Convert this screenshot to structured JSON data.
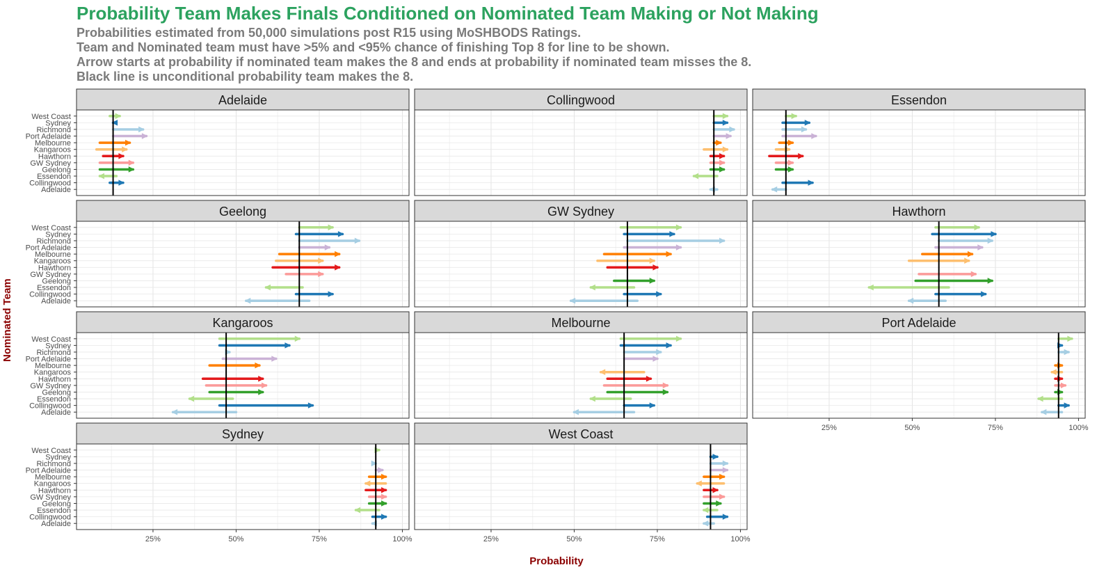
{
  "title": "Probability Team Makes Finals Conditioned on Nominated Team Making or Not Making",
  "subtitle_lines": [
    "Probabilities estimated from 50,000 simulations post R15 using MoSHBODS Ratings.",
    "Team and Nominated team must have >5% and <95% chance of finishing Top 8 for line to be shown.",
    "Arrow starts at probability if nominated team makes the 8 and ends at probability if nominated team misses the 8.",
    "Black line is unconditional probability team makes the 8."
  ],
  "chart_data": {
    "type": "arrow-dumbbell",
    "xlabel": "Probability",
    "ylabel": "Nominated Team",
    "xlim": [
      0.02,
      1.02
    ],
    "x_ticks": [
      0.25,
      0.5,
      0.75,
      1.0
    ],
    "x_tick_labels": [
      "25%",
      "50%",
      "75%",
      "100%"
    ],
    "y_categories": [
      "West Coast",
      "Sydney",
      "Richmond",
      "Port Adelaide",
      "Melbourne",
      "Kangaroos",
      "Hawthorn",
      "GW Sydney",
      "Geelong",
      "Essendon",
      "Collingwood",
      "Adelaide"
    ],
    "colors": {
      "West Coast": "#B2DF8A",
      "Sydney": "#1F78B4",
      "Richmond": "#A6CEE3",
      "Port Adelaide": "#CAB2D6",
      "Melbourne": "#FF7F00",
      "Kangaroos": "#FDBF6F",
      "Hawthorn": "#E31A1C",
      "GW Sydney": "#FB9A99",
      "Geelong": "#33A02C",
      "Essendon": "#B2DF8A",
      "Collingwood": "#1F78B4",
      "Adelaide": "#A6CEE3"
    },
    "facets": [
      {
        "team": "Adelaide",
        "unconditional": 0.13,
        "arrows": [
          [
            "West Coast",
            0.12,
            0.15
          ],
          [
            "Sydney",
            0.14,
            0.13
          ],
          [
            "Richmond",
            0.13,
            0.22
          ],
          [
            "Port Adelaide",
            0.13,
            0.23
          ],
          [
            "Melbourne",
            0.09,
            0.18
          ],
          [
            "Kangaroos",
            0.08,
            0.17
          ],
          [
            "Hawthorn",
            0.1,
            0.16
          ],
          [
            "GW Sydney",
            0.09,
            0.19
          ],
          [
            "Geelong",
            0.09,
            0.19
          ],
          [
            "Essendon",
            0.14,
            0.09
          ],
          [
            "Collingwood",
            0.12,
            0.16
          ]
        ]
      },
      {
        "team": "Collingwood",
        "unconditional": 0.92,
        "arrows": [
          [
            "West Coast",
            0.92,
            0.96
          ],
          [
            "Sydney",
            0.92,
            0.96
          ],
          [
            "Richmond",
            0.92,
            0.98
          ],
          [
            "Port Adelaide",
            0.92,
            0.97
          ],
          [
            "Melbourne",
            0.92,
            0.94
          ],
          [
            "Kangaroos",
            0.89,
            0.96
          ],
          [
            "Hawthorn",
            0.91,
            0.95
          ],
          [
            "GW Sydney",
            0.91,
            0.95
          ],
          [
            "Geelong",
            0.91,
            0.95
          ],
          [
            "Essendon",
            0.93,
            0.86
          ],
          [
            "Adelaide",
            0.93,
            0.91
          ]
        ]
      },
      {
        "team": "Essendon",
        "unconditional": 0.12,
        "arrows": [
          [
            "West Coast",
            0.12,
            0.15
          ],
          [
            "Sydney",
            0.11,
            0.19
          ],
          [
            "Richmond",
            0.11,
            0.18
          ],
          [
            "Port Adelaide",
            0.11,
            0.21
          ],
          [
            "Melbourne",
            0.1,
            0.14
          ],
          [
            "Kangaroos",
            0.09,
            0.13
          ],
          [
            "Hawthorn",
            0.07,
            0.17
          ],
          [
            "GW Sydney",
            0.09,
            0.14
          ],
          [
            "Geelong",
            0.09,
            0.14
          ],
          [
            "Collingwood",
            0.11,
            0.2
          ],
          [
            "Adelaide",
            0.12,
            0.08
          ]
        ]
      },
      {
        "team": "Geelong",
        "unconditional": 0.69,
        "arrows": [
          [
            "West Coast",
            0.69,
            0.79
          ],
          [
            "Sydney",
            0.68,
            0.82
          ],
          [
            "Richmond",
            0.69,
            0.87
          ],
          [
            "Port Adelaide",
            0.69,
            0.78
          ],
          [
            "Melbourne",
            0.63,
            0.81
          ],
          [
            "Kangaroos",
            0.62,
            0.76
          ],
          [
            "Hawthorn",
            0.61,
            0.81
          ],
          [
            "GW Sydney",
            0.65,
            0.76
          ],
          [
            "Essendon",
            0.7,
            0.59
          ],
          [
            "Collingwood",
            0.68,
            0.79
          ],
          [
            "Adelaide",
            0.72,
            0.53
          ]
        ]
      },
      {
        "team": "GW Sydney",
        "unconditional": 0.66,
        "arrows": [
          [
            "West Coast",
            0.64,
            0.82
          ],
          [
            "Sydney",
            0.65,
            0.8
          ],
          [
            "Richmond",
            0.66,
            0.95
          ],
          [
            "Port Adelaide",
            0.65,
            0.82
          ],
          [
            "Melbourne",
            0.59,
            0.79
          ],
          [
            "Kangaroos",
            0.57,
            0.74
          ],
          [
            "Hawthorn",
            0.6,
            0.75
          ],
          [
            "Geelong",
            0.62,
            0.74
          ],
          [
            "Essendon",
            0.68,
            0.55
          ],
          [
            "Collingwood",
            0.65,
            0.76
          ],
          [
            "Adelaide",
            0.69,
            0.49
          ]
        ]
      },
      {
        "team": "Hawthorn",
        "unconditional": 0.58,
        "arrows": [
          [
            "West Coast",
            0.57,
            0.7
          ],
          [
            "Sydney",
            0.56,
            0.75
          ],
          [
            "Richmond",
            0.58,
            0.74
          ],
          [
            "Port Adelaide",
            0.57,
            0.71
          ],
          [
            "Melbourne",
            0.53,
            0.68
          ],
          [
            "Kangaroos",
            0.49,
            0.67
          ],
          [
            "GW Sydney",
            0.52,
            0.69
          ],
          [
            "Geelong",
            0.51,
            0.74
          ],
          [
            "Essendon",
            0.61,
            0.37
          ],
          [
            "Collingwood",
            0.57,
            0.72
          ],
          [
            "Adelaide",
            0.6,
            0.49
          ]
        ]
      },
      {
        "team": "Kangaroos",
        "unconditional": 0.47,
        "arrows": [
          [
            "West Coast",
            0.45,
            0.69
          ],
          [
            "Sydney",
            0.45,
            0.66
          ],
          [
            "Richmond",
            0.47,
            0.48
          ],
          [
            "Port Adelaide",
            0.46,
            0.62
          ],
          [
            "Melbourne",
            0.42,
            0.57
          ],
          [
            "Hawthorn",
            0.4,
            0.58
          ],
          [
            "GW Sydney",
            0.41,
            0.59
          ],
          [
            "Geelong",
            0.42,
            0.58
          ],
          [
            "Essendon",
            0.49,
            0.36
          ],
          [
            "Collingwood",
            0.45,
            0.73
          ],
          [
            "Adelaide",
            0.5,
            0.31
          ]
        ]
      },
      {
        "team": "Melbourne",
        "unconditional": 0.65,
        "arrows": [
          [
            "West Coast",
            0.64,
            0.82
          ],
          [
            "Sydney",
            0.64,
            0.79
          ],
          [
            "Richmond",
            0.65,
            0.76
          ],
          [
            "Port Adelaide",
            0.65,
            0.75
          ],
          [
            "Kangaroos",
            0.71,
            0.58
          ],
          [
            "Hawthorn",
            0.6,
            0.73
          ],
          [
            "GW Sydney",
            0.59,
            0.78
          ],
          [
            "Geelong",
            0.6,
            0.78
          ],
          [
            "Essendon",
            0.67,
            0.55
          ],
          [
            "Collingwood",
            0.65,
            0.74
          ],
          [
            "Adelaide",
            0.68,
            0.5
          ]
        ]
      },
      {
        "team": "Port Adelaide",
        "unconditional": 0.94,
        "arrows": [
          [
            "West Coast",
            0.94,
            0.98
          ],
          [
            "Sydney",
            0.94,
            0.95
          ],
          [
            "Richmond",
            0.94,
            0.97
          ],
          [
            "Melbourne",
            0.93,
            0.95
          ],
          [
            "Kangaroos",
            0.95,
            0.92
          ],
          [
            "Hawthorn",
            0.93,
            0.95
          ],
          [
            "GW Sydney",
            0.93,
            0.96
          ],
          [
            "Geelong",
            0.93,
            0.95
          ],
          [
            "Essendon",
            0.95,
            0.88
          ],
          [
            "Collingwood",
            0.94,
            0.97
          ],
          [
            "Adelaide",
            0.95,
            0.89
          ]
        ]
      },
      {
        "team": "Sydney",
        "unconditional": 0.92,
        "arrows": [
          [
            "West Coast",
            0.92,
            0.93
          ],
          [
            "Richmond",
            0.92,
            0.92
          ],
          [
            "Port Adelaide",
            0.92,
            0.94
          ],
          [
            "Melbourne",
            0.9,
            0.95
          ],
          [
            "Kangaroos",
            0.95,
            0.89
          ],
          [
            "Hawthorn",
            0.89,
            0.95
          ],
          [
            "GW Sydney",
            0.9,
            0.95
          ],
          [
            "Geelong",
            0.9,
            0.95
          ],
          [
            "Essendon",
            0.93,
            0.86
          ],
          [
            "Collingwood",
            0.91,
            0.95
          ],
          [
            "Adelaide",
            0.92,
            0.91
          ]
        ]
      },
      {
        "team": "West Coast",
        "unconditional": 0.91,
        "arrows": [
          [
            "Sydney",
            0.91,
            0.93
          ],
          [
            "Richmond",
            0.91,
            0.96
          ],
          [
            "Port Adelaide",
            0.91,
            0.96
          ],
          [
            "Melbourne",
            0.89,
            0.95
          ],
          [
            "Kangaroos",
            0.95,
            0.87
          ],
          [
            "Hawthorn",
            0.89,
            0.93
          ],
          [
            "GW Sydney",
            0.89,
            0.95
          ],
          [
            "Geelong",
            0.89,
            0.94
          ],
          [
            "Essendon",
            0.93,
            0.89
          ],
          [
            "Collingwood",
            0.9,
            0.96
          ],
          [
            "Adelaide",
            0.92,
            0.89
          ]
        ]
      }
    ]
  }
}
